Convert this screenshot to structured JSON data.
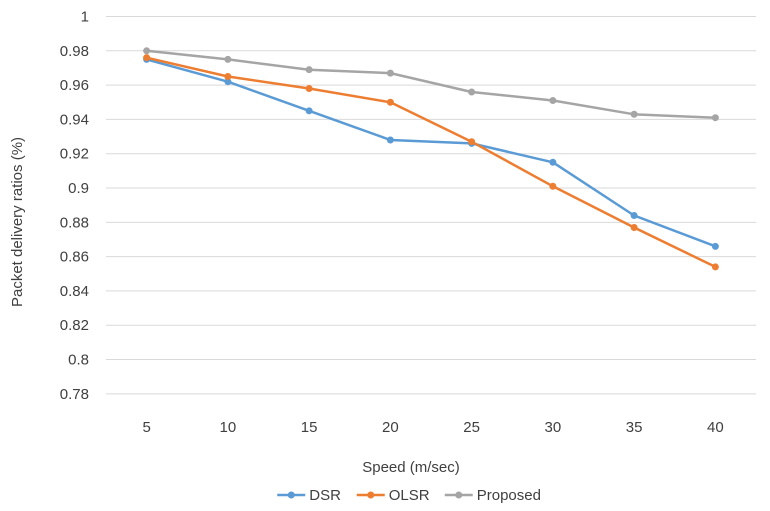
{
  "chart_data": {
    "type": "line",
    "title": "",
    "xlabel": "Speed (m/sec)",
    "ylabel": "Packet delivery ratios (%)",
    "x": [
      5,
      10,
      15,
      20,
      25,
      30,
      35,
      40
    ],
    "x_tick_labels": [
      "5",
      "10",
      "15",
      "20",
      "25",
      "30",
      "35",
      "40"
    ],
    "ylim": [
      0.77,
      1.0
    ],
    "y_ticks": [
      0.78,
      0.8,
      0.82,
      0.84,
      0.86,
      0.88,
      0.9,
      0.92,
      0.94,
      0.96,
      0.98,
      1
    ],
    "y_tick_labels": [
      "0.78",
      "0.8",
      "0.82",
      "0.84",
      "0.86",
      "0.88",
      "0.9",
      "0.92",
      "0.94",
      "0.96",
      "0.98",
      "1"
    ],
    "grid": true,
    "legend_position": "bottom",
    "series": [
      {
        "name": "DSR",
        "color": "#5B9BD5",
        "values": [
          0.975,
          0.962,
          0.945,
          0.928,
          0.926,
          0.915,
          0.884,
          0.866
        ]
      },
      {
        "name": "OLSR",
        "color": "#ED7D31",
        "values": [
          0.976,
          0.965,
          0.958,
          0.95,
          0.927,
          0.901,
          0.877,
          0.854
        ]
      },
      {
        "name": "Proposed",
        "color": "#A5A5A5",
        "values": [
          0.98,
          0.975,
          0.969,
          0.967,
          0.956,
          0.951,
          0.943,
          0.941
        ]
      }
    ]
  }
}
